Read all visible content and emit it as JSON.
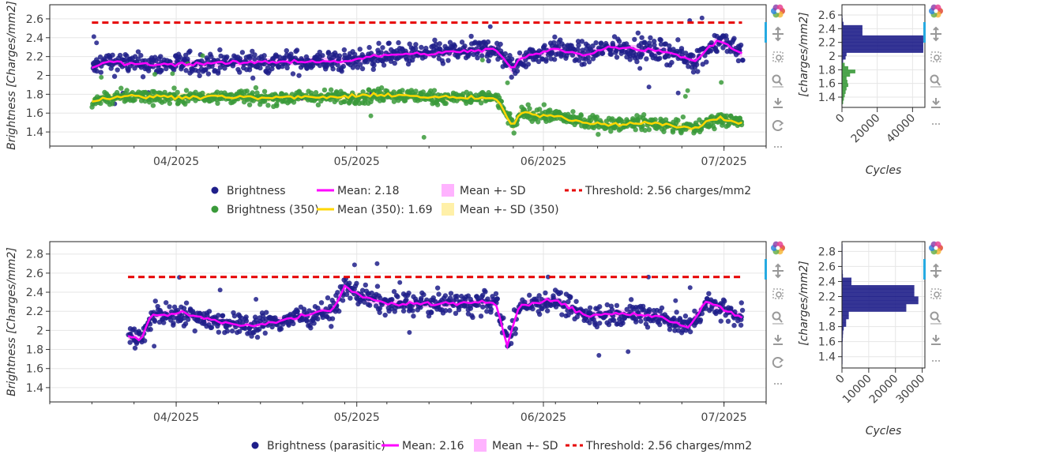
{
  "charts": [
    {
      "title": "",
      "ylabel": "Brightness [Charges/mm2]",
      "xlabel": "",
      "yticks": [
        "1.4",
        "1.6",
        "1.8",
        "2",
        "2.2",
        "2.4",
        "2.6"
      ],
      "xticks": [
        "04/2025",
        "05/2025",
        "06/2025",
        "07/2025"
      ],
      "legend_rows": [
        [
          "Brightness",
          "Mean: 2.18",
          "Mean +- SD",
          "Threshold: 2.56 charges/mm2"
        ],
        [
          "Brightness (350)",
          "Mean (350): 1.69",
          "Mean +- SD (350)"
        ]
      ],
      "hist": {
        "ylabel": "[charges/mm2]",
        "xlabel": "Cycles",
        "yticks": [
          "1.4",
          "1.6",
          "1.8",
          "2",
          "2.2",
          "2.4",
          "2.6"
        ],
        "xticks": [
          "0",
          "20000",
          "40000"
        ]
      }
    },
    {
      "title": "",
      "ylabel": "Brightness [Charges/mm2]",
      "xlabel": "",
      "yticks": [
        "1.4",
        "1.6",
        "1.8",
        "2",
        "2.2",
        "2.4",
        "2.6",
        "2.8"
      ],
      "xticks": [
        "04/2025",
        "05/2025",
        "06/2025",
        "07/2025"
      ],
      "legend_rows": [
        [
          "Brightness (parasitic)",
          "Mean: 2.16",
          "Mean +- SD",
          "Threshold: 2.56 charges/mm2"
        ]
      ],
      "hist": {
        "ylabel": "[charges/mm2]",
        "xlabel": "Cycles",
        "yticks": [
          "1.4",
          "1.6",
          "1.8",
          "2",
          "2.2",
          "2.4",
          "2.6",
          "2.8"
        ],
        "xticks": [
          "0",
          "10000",
          "20000",
          "30000"
        ]
      }
    }
  ],
  "toolbar_icons": [
    "bokeh-logo-icon",
    "pan-icon",
    "box-zoom-icon",
    "wheel-zoom-icon",
    "save-icon",
    "reset-icon",
    "more-icon"
  ],
  "hist_toolbar_icons": [
    "bokeh-logo-icon",
    "pan-icon",
    "box-zoom-icon",
    "wheel-zoom-icon",
    "save-icon",
    "more-icon"
  ],
  "colors": {
    "brightness": "#1f1f8a",
    "brightness_350": "#3a9a3a",
    "mean": "#ff00ff",
    "mean_350": "#ffd700",
    "sd": "#ffb3ff",
    "sd_350": "#fff0a8",
    "threshold": "#e60000"
  },
  "chart_data": [
    {
      "type": "scatter",
      "x_axis": "date",
      "xlim": [
        "2025-03-11",
        "2025-07-08"
      ],
      "ylim": [
        1.25,
        2.75
      ],
      "grid": true,
      "legend_placement": "bottom",
      "series": [
        {
          "name": "Brightness",
          "x": [
            "2025-03-18",
            "2025-03-20",
            "2025-03-25",
            "2025-04-01",
            "2025-04-08",
            "2025-04-15",
            "2025-04-22",
            "2025-04-29",
            "2025-05-06",
            "2025-05-13",
            "2025-05-20",
            "2025-05-24",
            "2025-05-27",
            "2025-05-28",
            "2025-06-03",
            "2025-06-08",
            "2025-06-12",
            "2025-06-17",
            "2025-06-22",
            "2025-06-26",
            "2025-06-30",
            "2025-07-04"
          ],
          "y": [
            2.07,
            2.15,
            2.12,
            2.12,
            2.13,
            2.14,
            2.15,
            2.15,
            2.22,
            2.23,
            2.26,
            2.28,
            2.05,
            2.18,
            2.28,
            2.22,
            2.3,
            2.28,
            2.25,
            2.15,
            2.38,
            2.23
          ]
        },
        {
          "name": "Mean: 2.18",
          "x": [
            "2025-03-18",
            "2025-03-20",
            "2025-03-25",
            "2025-04-01",
            "2025-04-08",
            "2025-04-15",
            "2025-04-22",
            "2025-04-29",
            "2025-05-06",
            "2025-05-13",
            "2025-05-20",
            "2025-05-24",
            "2025-05-27",
            "2025-05-28",
            "2025-06-03",
            "2025-06-08",
            "2025-06-12",
            "2025-06-17",
            "2025-06-22",
            "2025-06-26",
            "2025-06-30",
            "2025-07-04"
          ],
          "y": [
            2.07,
            2.15,
            2.12,
            2.12,
            2.13,
            2.14,
            2.15,
            2.15,
            2.22,
            2.23,
            2.26,
            2.28,
            2.05,
            2.18,
            2.28,
            2.22,
            2.3,
            2.28,
            2.25,
            2.15,
            2.38,
            2.23
          ]
        },
        {
          "name": "Brightness (350)",
          "x": [
            "2025-03-18",
            "2025-03-20",
            "2025-03-25",
            "2025-04-01",
            "2025-04-08",
            "2025-04-15",
            "2025-04-22",
            "2025-04-29",
            "2025-05-06",
            "2025-05-13",
            "2025-05-20",
            "2025-05-24",
            "2025-05-27",
            "2025-05-28",
            "2025-06-03",
            "2025-06-08",
            "2025-06-12",
            "2025-06-17",
            "2025-06-22",
            "2025-06-26",
            "2025-06-30",
            "2025-07-04"
          ],
          "y": [
            1.72,
            1.76,
            1.78,
            1.77,
            1.78,
            1.76,
            1.77,
            1.77,
            1.8,
            1.77,
            1.76,
            1.76,
            1.45,
            1.6,
            1.57,
            1.5,
            1.48,
            1.5,
            1.47,
            1.44,
            1.55,
            1.49
          ]
        },
        {
          "name": "Mean (350): 1.69",
          "x": [
            "2025-03-18",
            "2025-03-20",
            "2025-03-25",
            "2025-04-01",
            "2025-04-08",
            "2025-04-15",
            "2025-04-22",
            "2025-04-29",
            "2025-05-06",
            "2025-05-13",
            "2025-05-20",
            "2025-05-24",
            "2025-05-27",
            "2025-05-28",
            "2025-06-03",
            "2025-06-08",
            "2025-06-12",
            "2025-06-17",
            "2025-06-22",
            "2025-06-26",
            "2025-06-30",
            "2025-07-04"
          ],
          "y": [
            1.72,
            1.76,
            1.78,
            1.77,
            1.78,
            1.76,
            1.77,
            1.77,
            1.8,
            1.77,
            1.76,
            1.76,
            1.45,
            1.6,
            1.57,
            1.5,
            1.48,
            1.5,
            1.47,
            1.44,
            1.55,
            1.49
          ]
        },
        {
          "name": "Threshold: 2.56 charges/mm2",
          "x": [
            "2025-03-18",
            "2025-07-04"
          ],
          "y": [
            2.56,
            2.56
          ]
        }
      ]
    },
    {
      "type": "bar",
      "orientation": "horizontal",
      "xlim": [
        0,
        47000
      ],
      "ylim": [
        1.25,
        2.75
      ],
      "series": [
        {
          "name": "Brightness",
          "bins": [
            [
              1.3,
              1.35
            ],
            [
              1.35,
              1.4
            ],
            [
              1.4,
              1.45
            ],
            [
              1.45,
              1.5
            ],
            [
              1.5,
              1.55
            ],
            [
              1.55,
              1.6
            ],
            [
              1.6,
              1.65
            ],
            [
              1.65,
              1.7
            ],
            [
              1.7,
              1.75
            ],
            [
              1.75,
              1.8
            ],
            [
              1.8,
              1.85
            ],
            [
              1.85,
              1.9
            ],
            [
              1.9,
              1.95
            ],
            [
              1.95,
              2.0
            ],
            [
              2.0,
              2.05
            ],
            [
              2.05,
              2.1
            ],
            [
              2.1,
              2.15
            ],
            [
              2.15,
              2.2
            ],
            [
              2.2,
              2.25
            ],
            [
              2.25,
              2.3
            ],
            [
              2.3,
              2.35
            ],
            [
              2.35,
              2.4
            ],
            [
              2.4,
              2.45
            ],
            [
              2.45,
              2.5
            ],
            [
              2.5,
              2.55
            ],
            [
              2.55,
              2.6
            ],
            [
              2.6,
              2.65
            ],
            [
              2.65,
              2.7
            ]
          ],
          "values": [
            0,
            0,
            0,
            0,
            0,
            0,
            0,
            0,
            0,
            0,
            100,
            200,
            600,
            2000,
            2500,
            46000,
            46000,
            46000,
            46000,
            46000,
            11500,
            11500,
            11500,
            800,
            300,
            100,
            0,
            0
          ]
        },
        {
          "name": "Brightness (350)",
          "bins": [
            [
              1.3,
              1.35
            ],
            [
              1.35,
              1.4
            ],
            [
              1.4,
              1.45
            ],
            [
              1.45,
              1.5
            ],
            [
              1.5,
              1.55
            ],
            [
              1.55,
              1.6
            ],
            [
              1.6,
              1.65
            ],
            [
              1.65,
              1.7
            ],
            [
              1.7,
              1.75
            ],
            [
              1.75,
              1.8
            ],
            [
              1.8,
              1.85
            ],
            [
              1.85,
              1.9
            ]
          ],
          "values": [
            600,
            1000,
            1500,
            2000,
            2500,
            3500,
            3000,
            2500,
            4500,
            7500,
            3500,
            1500
          ]
        }
      ]
    },
    {
      "type": "scatter",
      "x_axis": "date",
      "xlim": [
        "2025-03-11",
        "2025-07-08"
      ],
      "ylim": [
        1.25,
        2.93
      ],
      "grid": true,
      "legend_placement": "bottom",
      "series": [
        {
          "name": "Brightness (parasitic)",
          "x": [
            "2025-03-24",
            "2025-03-26",
            "2025-03-28",
            "2025-04-02",
            "2025-04-09",
            "2025-04-13",
            "2025-04-20",
            "2025-04-27",
            "2025-04-29",
            "2025-05-02",
            "2025-05-06",
            "2025-05-13",
            "2025-05-20",
            "2025-05-24",
            "2025-05-26",
            "2025-05-28",
            "2025-06-03",
            "2025-06-08",
            "2025-06-13",
            "2025-06-20",
            "2025-06-25",
            "2025-06-28",
            "2025-07-04"
          ],
          "y": [
            1.95,
            1.9,
            2.16,
            2.18,
            2.08,
            2.05,
            2.12,
            2.22,
            2.45,
            2.35,
            2.28,
            2.28,
            2.28,
            2.3,
            1.85,
            2.27,
            2.32,
            2.15,
            2.18,
            2.15,
            2.03,
            2.3,
            2.14
          ]
        },
        {
          "name": "Mean: 2.16",
          "x": [
            "2025-03-24",
            "2025-03-26",
            "2025-03-28",
            "2025-04-02",
            "2025-04-09",
            "2025-04-13",
            "2025-04-20",
            "2025-04-27",
            "2025-04-29",
            "2025-05-02",
            "2025-05-06",
            "2025-05-13",
            "2025-05-20",
            "2025-05-24",
            "2025-05-26",
            "2025-05-28",
            "2025-06-03",
            "2025-06-08",
            "2025-06-13",
            "2025-06-20",
            "2025-06-25",
            "2025-06-28",
            "2025-07-04"
          ],
          "y": [
            1.95,
            1.9,
            2.16,
            2.18,
            2.08,
            2.05,
            2.12,
            2.22,
            2.45,
            2.35,
            2.28,
            2.28,
            2.28,
            2.3,
            1.85,
            2.27,
            2.32,
            2.15,
            2.18,
            2.15,
            2.03,
            2.3,
            2.14
          ]
        },
        {
          "name": "Threshold: 2.56 charges/mm2",
          "x": [
            "2025-03-24",
            "2025-07-04"
          ],
          "y": [
            2.56,
            2.56
          ]
        }
      ]
    },
    {
      "type": "bar",
      "orientation": "horizontal",
      "xlim": [
        0,
        31000
      ],
      "ylim": [
        1.25,
        2.93
      ],
      "series": [
        {
          "name": "Brightness (parasitic)",
          "bins": [
            [
              1.3,
              1.35
            ],
            [
              1.35,
              1.4
            ],
            [
              1.4,
              1.45
            ],
            [
              1.45,
              1.5
            ],
            [
              1.5,
              1.55
            ],
            [
              1.55,
              1.6
            ],
            [
              1.6,
              1.65
            ],
            [
              1.65,
              1.7
            ],
            [
              1.7,
              1.75
            ],
            [
              1.75,
              1.8
            ],
            [
              1.8,
              1.85
            ],
            [
              1.85,
              1.9
            ],
            [
              1.9,
              1.95
            ],
            [
              1.95,
              2.0
            ],
            [
              2.0,
              2.05
            ],
            [
              2.05,
              2.1
            ],
            [
              2.1,
              2.15
            ],
            [
              2.15,
              2.2
            ],
            [
              2.2,
              2.25
            ],
            [
              2.25,
              2.3
            ],
            [
              2.3,
              2.35
            ],
            [
              2.35,
              2.4
            ],
            [
              2.4,
              2.45
            ],
            [
              2.45,
              2.5
            ],
            [
              2.5,
              2.55
            ],
            [
              2.55,
              2.6
            ],
            [
              2.6,
              2.65
            ],
            [
              2.65,
              2.7
            ],
            [
              2.7,
              2.75
            ],
            [
              2.75,
              2.8
            ],
            [
              2.8,
              2.85
            ],
            [
              2.85,
              2.9
            ]
          ],
          "values": [
            20,
            20,
            50,
            50,
            100,
            150,
            250,
            300,
            400,
            600,
            1500,
            1500,
            2500,
            2500,
            24000,
            24000,
            28500,
            28500,
            27000,
            27000,
            27000,
            3500,
            3500,
            300,
            200,
            150,
            80,
            50,
            30,
            30,
            20,
            10
          ]
        }
      ]
    }
  ]
}
